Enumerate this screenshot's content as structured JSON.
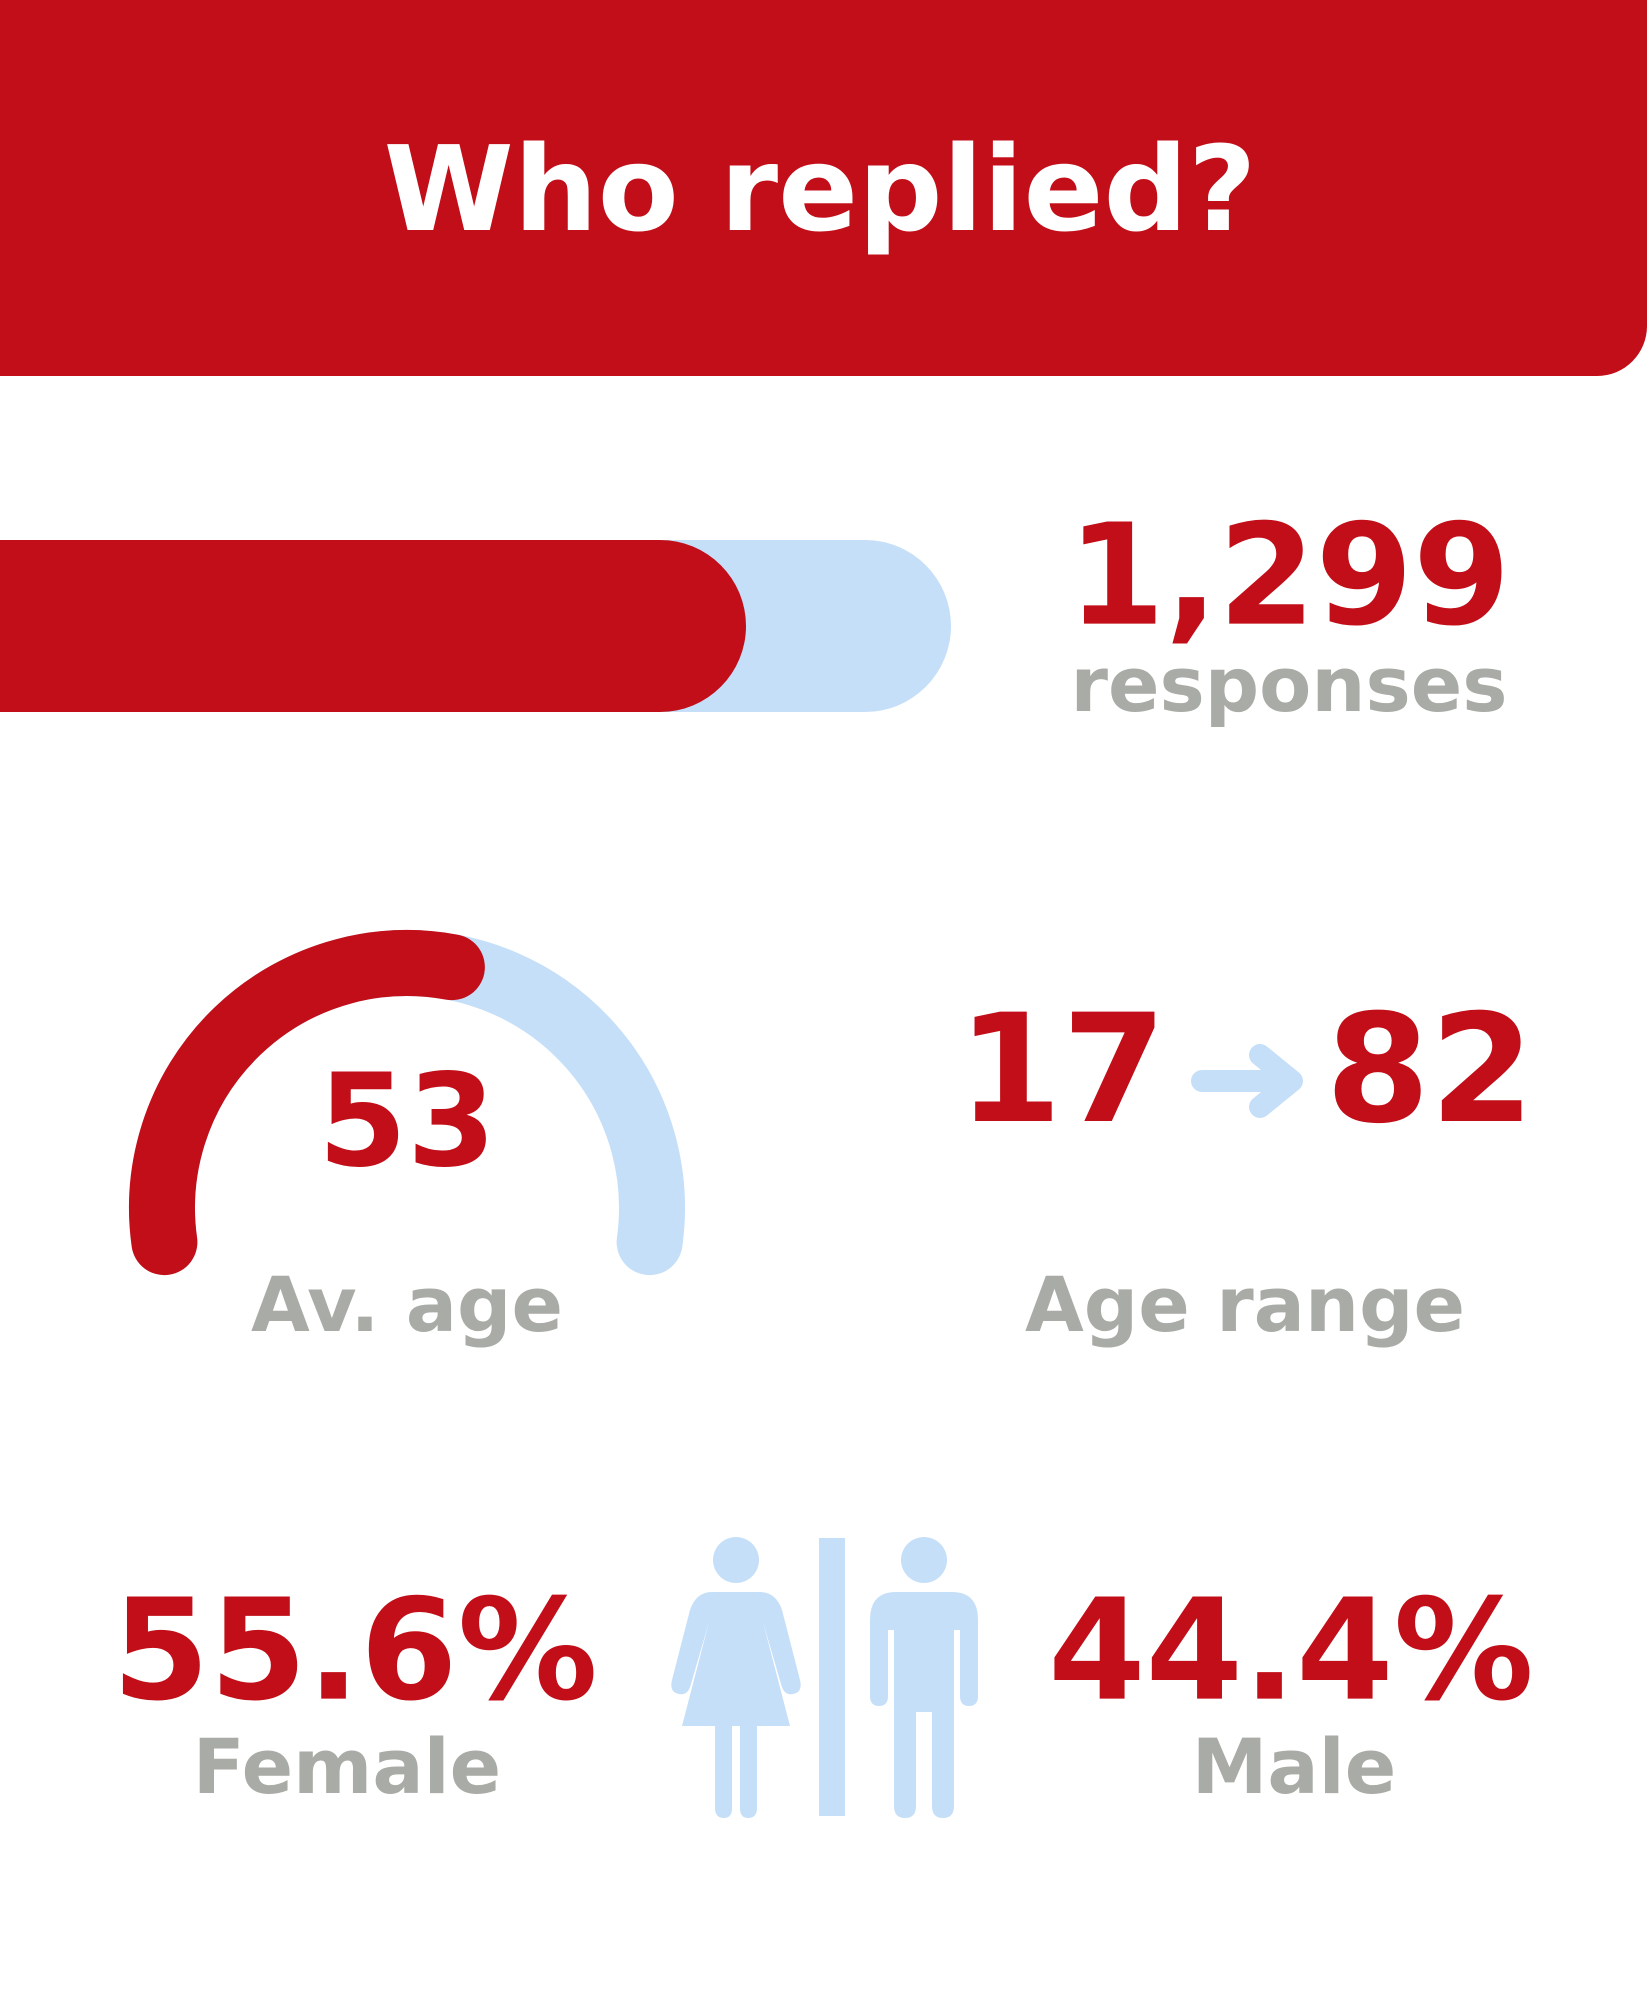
{
  "header": {
    "title": "Who replied?"
  },
  "responses": {
    "count": "1,299",
    "label": "responses"
  },
  "age": {
    "average": 53,
    "average_label": "Av. age",
    "min": 17,
    "max": 82,
    "range_label": "Age range"
  },
  "gender": {
    "female": {
      "share": "55.6%",
      "label": "Female"
    },
    "male": {
      "share": "44.4%",
      "label": "Male"
    }
  }
}
